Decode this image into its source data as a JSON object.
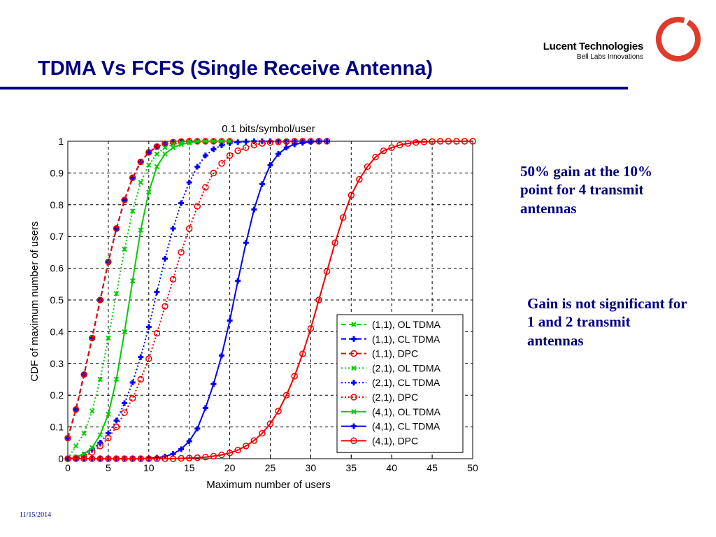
{
  "slide": {
    "title": "TDMA Vs FCFS (Single Receive Antenna)",
    "date": "11/15/2014",
    "logo": {
      "name": "Lucent Technologies",
      "tagline": "Bell Labs Innovations"
    },
    "notes": [
      "50% gain at the 10% point for 4 transmit antennas",
      "Gain is not significant for 1 and 2 transmit antennas"
    ],
    "colors": {
      "title": "#000080",
      "logo_ring": "#e03a2b"
    }
  },
  "chart_data": {
    "type": "line",
    "title": "0.1 bits/symbol/user",
    "xlabel": "Maximum number of users",
    "ylabel": "CDF of maximum number of users",
    "xlim": [
      0,
      50
    ],
    "ylim": [
      0,
      1
    ],
    "xticks": [
      0,
      5,
      10,
      15,
      20,
      25,
      30,
      35,
      40,
      45,
      50
    ],
    "yticks": [
      0,
      0.1,
      0.2,
      0.3,
      0.4,
      0.5,
      0.6,
      0.7,
      0.8,
      0.9,
      1
    ],
    "grid": true,
    "legend_position": "bottom-right",
    "series": [
      {
        "name": "(1,1), OL TDMA",
        "color": "#00cc00",
        "dash": "dashed",
        "marker": "x",
        "x": [
          0,
          1,
          2,
          3,
          4,
          5,
          6,
          7,
          8,
          9,
          10,
          11,
          12,
          13,
          14,
          15,
          16,
          17,
          18,
          19,
          20
        ],
        "y": [
          0.065,
          0.155,
          0.265,
          0.38,
          0.5,
          0.62,
          0.725,
          0.815,
          0.885,
          0.935,
          0.965,
          0.983,
          0.992,
          0.997,
          0.999,
          1,
          1,
          1,
          1,
          1,
          1
        ]
      },
      {
        "name": "(1,1), CL TDMA",
        "color": "#0000ee",
        "dash": "dashed",
        "marker": "plus",
        "x": [
          0,
          1,
          2,
          3,
          4,
          5,
          6,
          7,
          8,
          9,
          10,
          11,
          12,
          13,
          14,
          15,
          16,
          17,
          18,
          19,
          20
        ],
        "y": [
          0.065,
          0.155,
          0.265,
          0.38,
          0.5,
          0.62,
          0.725,
          0.815,
          0.885,
          0.935,
          0.965,
          0.983,
          0.992,
          0.997,
          0.999,
          1,
          1,
          1,
          1,
          1,
          1
        ]
      },
      {
        "name": "(1,1), DPC",
        "color": "#ee0000",
        "dash": "dashed",
        "marker": "circle",
        "x": [
          0,
          1,
          2,
          3,
          4,
          5,
          6,
          7,
          8,
          9,
          10,
          11,
          12,
          13,
          14,
          15,
          16,
          17,
          18,
          19,
          20
        ],
        "y": [
          0.065,
          0.155,
          0.265,
          0.38,
          0.5,
          0.62,
          0.725,
          0.815,
          0.885,
          0.935,
          0.965,
          0.983,
          0.992,
          0.997,
          0.999,
          1,
          1,
          1,
          1,
          1,
          1
        ]
      },
      {
        "name": "(2,1), OL TDMA",
        "color": "#00cc00",
        "dash": "dotted",
        "marker": "x",
        "x": [
          0,
          1,
          2,
          3,
          4,
          5,
          6,
          7,
          8,
          9,
          10,
          11,
          12,
          13,
          14,
          15,
          16,
          17,
          18,
          19,
          20
        ],
        "y": [
          0.0,
          0.04,
          0.08,
          0.15,
          0.25,
          0.38,
          0.52,
          0.66,
          0.78,
          0.87,
          0.925,
          0.96,
          0.98,
          0.99,
          0.995,
          1,
          1,
          1,
          1,
          1,
          1
        ]
      },
      {
        "name": "(2,1), CL TDMA",
        "color": "#0000ee",
        "dash": "dotted",
        "marker": "plus",
        "x": [
          0,
          1,
          2,
          3,
          4,
          5,
          6,
          7,
          8,
          9,
          10,
          11,
          12,
          13,
          14,
          15,
          16,
          17,
          18,
          19,
          20,
          21,
          22,
          23,
          24,
          25,
          26,
          27,
          28,
          29,
          30,
          31,
          32
        ],
        "y": [
          0.0,
          0.003,
          0.012,
          0.03,
          0.05,
          0.08,
          0.12,
          0.175,
          0.24,
          0.32,
          0.415,
          0.525,
          0.63,
          0.725,
          0.805,
          0.87,
          0.92,
          0.955,
          0.975,
          0.987,
          0.994,
          0.997,
          0.999,
          1,
          1,
          1,
          1,
          1,
          1,
          1,
          1,
          1,
          1
        ]
      },
      {
        "name": "(2,1), DPC",
        "color": "#ee0000",
        "dash": "dotted",
        "marker": "circle",
        "x": [
          0,
          1,
          2,
          3,
          4,
          5,
          6,
          7,
          8,
          9,
          10,
          11,
          12,
          13,
          14,
          15,
          16,
          17,
          18,
          19,
          20,
          21,
          22,
          23,
          24,
          25,
          26,
          27,
          28,
          29,
          30,
          31,
          32
        ],
        "y": [
          0.0,
          0.002,
          0.008,
          0.02,
          0.04,
          0.065,
          0.1,
          0.145,
          0.19,
          0.25,
          0.315,
          0.395,
          0.48,
          0.565,
          0.65,
          0.725,
          0.795,
          0.855,
          0.9,
          0.93,
          0.955,
          0.97,
          0.98,
          0.988,
          0.993,
          0.996,
          0.998,
          0.999,
          1,
          1,
          1,
          1,
          1
        ]
      },
      {
        "name": "(4,1), OL TDMA",
        "color": "#00cc00",
        "dash": "solid",
        "marker": "x",
        "x": [
          0,
          1,
          2,
          3,
          4,
          5,
          6,
          7,
          8,
          9,
          10,
          11,
          12,
          13,
          14,
          15,
          16,
          17,
          18,
          19,
          20
        ],
        "y": [
          0.0,
          0.005,
          0.015,
          0.035,
          0.075,
          0.14,
          0.25,
          0.4,
          0.56,
          0.72,
          0.84,
          0.92,
          0.96,
          0.98,
          0.99,
          0.995,
          1,
          1,
          1,
          1,
          1
        ]
      },
      {
        "name": "(4,1), CL TDMA",
        "color": "#0000ee",
        "dash": "solid",
        "marker": "plus",
        "x": [
          0,
          1,
          2,
          3,
          4,
          5,
          6,
          7,
          8,
          9,
          10,
          11,
          12,
          13,
          14,
          15,
          16,
          17,
          18,
          19,
          20,
          21,
          22,
          23,
          24,
          25,
          26,
          27,
          28,
          29,
          30,
          31,
          32
        ],
        "y": [
          0,
          0,
          0,
          0,
          0,
          0,
          0,
          0,
          0,
          0,
          0.001,
          0.003,
          0.007,
          0.015,
          0.03,
          0.055,
          0.095,
          0.16,
          0.235,
          0.325,
          0.435,
          0.56,
          0.68,
          0.785,
          0.865,
          0.925,
          0.96,
          0.98,
          0.99,
          0.995,
          0.998,
          1,
          1
        ]
      },
      {
        "name": "(4,1), DPC",
        "color": "#ee0000",
        "dash": "solid",
        "marker": "circle",
        "x": [
          0,
          1,
          2,
          3,
          4,
          5,
          6,
          7,
          8,
          9,
          10,
          11,
          12,
          13,
          14,
          15,
          16,
          17,
          18,
          19,
          20,
          21,
          22,
          23,
          24,
          25,
          26,
          27,
          28,
          29,
          30,
          31,
          32,
          33,
          34,
          35,
          36,
          37,
          38,
          39,
          40,
          41,
          42,
          43,
          44,
          45,
          46,
          47,
          48,
          49,
          50
        ],
        "y": [
          0,
          0,
          0,
          0,
          0,
          0,
          0,
          0,
          0,
          0,
          0,
          0,
          0,
          0,
          0.001,
          0.002,
          0.003,
          0.005,
          0.008,
          0.012,
          0.018,
          0.027,
          0.04,
          0.057,
          0.08,
          0.11,
          0.15,
          0.2,
          0.26,
          0.33,
          0.41,
          0.5,
          0.59,
          0.68,
          0.76,
          0.83,
          0.88,
          0.92,
          0.95,
          0.97,
          0.98,
          0.988,
          0.993,
          0.996,
          0.998,
          0.999,
          1,
          1,
          1,
          1,
          1
        ]
      }
    ]
  }
}
